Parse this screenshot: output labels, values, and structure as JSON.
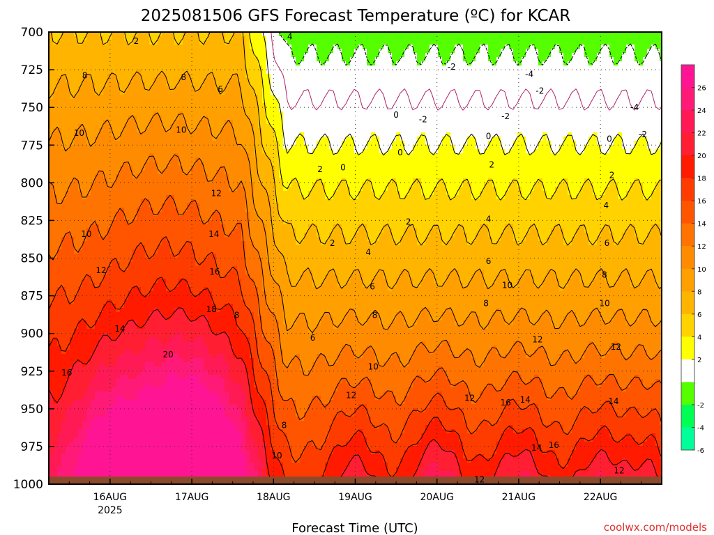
{
  "chart_data": {
    "type": "contour",
    "title": "2025081506 GFS Forecast Temperature (ºC) for KCAR",
    "xlabel": "Forecast Time (UTC)",
    "ylabel": "",
    "credit": "coolwx.com/models",
    "y_axis": {
      "direction": "inverted",
      "range": [
        700,
        1000
      ],
      "ticks": [
        "700",
        "725",
        "750",
        "775",
        "800",
        "825",
        "850",
        "875",
        "900",
        "925",
        "950",
        "975",
        "1000"
      ]
    },
    "x_axis": {
      "ticks": [
        {
          "label": "16AUG",
          "sub": "2025",
          "day": 1.0
        },
        {
          "label": "17AUG",
          "sub": "",
          "day": 2.0
        },
        {
          "label": "18AUG",
          "sub": "",
          "day": 3.0
        },
        {
          "label": "19AUG",
          "sub": "",
          "day": 4.0
        },
        {
          "label": "20AUG",
          "sub": "",
          "day": 5.0
        },
        {
          "label": "21AUG",
          "sub": "",
          "day": 6.0
        },
        {
          "label": "22AUG",
          "sub": "",
          "day": 7.0
        }
      ],
      "range_days": [
        0.25,
        7.75
      ]
    },
    "grid": "dotted",
    "colorbar": {
      "labels": [
        "26",
        "24",
        "22",
        "20",
        "18",
        "16",
        "14",
        "12",
        "10",
        "8",
        "6",
        "4",
        "2",
        "-2",
        "-4",
        "-6"
      ],
      "bands": [
        {
          "lo": 26,
          "hi": 28,
          "color": "#ff1493"
        },
        {
          "lo": 24,
          "hi": 26,
          "color": "#ff1a78"
        },
        {
          "lo": 22,
          "hi": 24,
          "color": "#ff1a55"
        },
        {
          "lo": 20,
          "hi": 22,
          "color": "#ff1e32"
        },
        {
          "lo": 18,
          "hi": 20,
          "color": "#ff1a00"
        },
        {
          "lo": 16,
          "hi": 18,
          "color": "#ff3c00"
        },
        {
          "lo": 14,
          "hi": 16,
          "color": "#ff5500"
        },
        {
          "lo": 12,
          "hi": 14,
          "color": "#ff7300"
        },
        {
          "lo": 10,
          "hi": 12,
          "color": "#ff8c00"
        },
        {
          "lo": 8,
          "hi": 10,
          "color": "#ffa000"
        },
        {
          "lo": 6,
          "hi": 8,
          "color": "#ffb400"
        },
        {
          "lo": 4,
          "hi": 6,
          "color": "#ffd200"
        },
        {
          "lo": 2,
          "hi": 4,
          "color": "#ffff00"
        },
        {
          "lo": -2,
          "hi": 2,
          "color": "#ffffff"
        },
        {
          "lo": -4,
          "hi": -2,
          "color": "#55ff00"
        },
        {
          "lo": -6,
          "hi": -4,
          "color": "#00ff55"
        },
        {
          "lo": -8,
          "hi": -6,
          "color": "#00ff99"
        }
      ]
    },
    "contour_levels": [
      -4,
      -2,
      0,
      2,
      4,
      6,
      8,
      10,
      12,
      14,
      16,
      18,
      20
    ],
    "contour_labels": [
      {
        "text": "2",
        "day": 1.32,
        "p": 706
      },
      {
        "text": "4",
        "day": 3.2,
        "p": 703
      },
      {
        "text": "8",
        "day": 0.69,
        "p": 729
      },
      {
        "text": "8",
        "day": 1.9,
        "p": 730
      },
      {
        "text": "6",
        "day": 2.35,
        "p": 738
      },
      {
        "text": "10",
        "day": 0.62,
        "p": 767
      },
      {
        "text": "10",
        "day": 1.87,
        "p": 765
      },
      {
        "text": "2",
        "day": 3.57,
        "p": 791
      },
      {
        "text": "12",
        "day": 2.3,
        "p": 807
      },
      {
        "text": "14",
        "day": 2.27,
        "p": 834
      },
      {
        "text": "16",
        "day": 2.28,
        "p": 859
      },
      {
        "text": "18",
        "day": 2.24,
        "p": 884
      },
      {
        "text": "20",
        "day": 1.71,
        "p": 914
      },
      {
        "text": "10",
        "day": 0.71,
        "p": 834
      },
      {
        "text": "12",
        "day": 0.89,
        "p": 858
      },
      {
        "text": "14",
        "day": 1.12,
        "p": 897
      },
      {
        "text": "16",
        "day": 0.47,
        "p": 926
      },
      {
        "text": "8",
        "day": 2.55,
        "p": 888
      },
      {
        "text": "8",
        "day": 3.13,
        "p": 961
      },
      {
        "text": "10",
        "day": 3.04,
        "p": 981
      },
      {
        "text": "6",
        "day": 3.48,
        "p": 903
      },
      {
        "text": "0",
        "day": 3.85,
        "p": 790
      },
      {
        "text": "2",
        "day": 3.72,
        "p": 840
      },
      {
        "text": "4",
        "day": 4.16,
        "p": 846
      },
      {
        "text": "6",
        "day": 4.21,
        "p": 869
      },
      {
        "text": "8",
        "day": 4.24,
        "p": 888
      },
      {
        "text": "10",
        "day": 4.22,
        "p": 922
      },
      {
        "text": "12",
        "day": 3.95,
        "p": 941
      },
      {
        "text": "0",
        "day": 4.5,
        "p": 755
      },
      {
        "text": "0",
        "day": 4.55,
        "p": 780
      },
      {
        "text": "-2",
        "day": 4.83,
        "p": 758
      },
      {
        "text": "-2",
        "day": 5.18,
        "p": 723
      },
      {
        "text": "2",
        "day": 4.65,
        "p": 826
      },
      {
        "text": "4",
        "day": 5.63,
        "p": 824
      },
      {
        "text": "6",
        "day": 5.63,
        "p": 852
      },
      {
        "text": "8",
        "day": 5.6,
        "p": 880
      },
      {
        "text": "10",
        "day": 5.86,
        "p": 868
      },
      {
        "text": "12",
        "day": 5.4,
        "p": 943
      },
      {
        "text": "0",
        "day": 5.63,
        "p": 769
      },
      {
        "text": "2",
        "day": 5.67,
        "p": 788
      },
      {
        "text": "-4",
        "day": 6.13,
        "p": 728
      },
      {
        "text": "-2",
        "day": 6.26,
        "p": 739
      },
      {
        "text": "-2",
        "day": 5.84,
        "p": 756
      },
      {
        "text": "16",
        "day": 5.84,
        "p": 946
      },
      {
        "text": "14",
        "day": 6.08,
        "p": 944
      },
      {
        "text": "12",
        "day": 6.23,
        "p": 904
      },
      {
        "text": "14",
        "day": 6.22,
        "p": 976
      },
      {
        "text": "16",
        "day": 6.43,
        "p": 974
      },
      {
        "text": "12",
        "day": 5.52,
        "p": 997
      },
      {
        "text": "0",
        "day": 7.11,
        "p": 771
      },
      {
        "text": "2",
        "day": 7.14,
        "p": 795
      },
      {
        "text": "4",
        "day": 7.07,
        "p": 815
      },
      {
        "text": "6",
        "day": 7.08,
        "p": 840
      },
      {
        "text": "8",
        "day": 7.05,
        "p": 861
      },
      {
        "text": "10",
        "day": 7.05,
        "p": 880
      },
      {
        "text": "12",
        "day": 7.19,
        "p": 909
      },
      {
        "text": "14",
        "day": 7.16,
        "p": 945
      },
      {
        "text": "12",
        "day": 7.23,
        "p": 991
      },
      {
        "text": "-4",
        "day": 7.42,
        "p": 750
      },
      {
        "text": "-2",
        "day": 7.52,
        "p": 768
      }
    ],
    "surface_pressure_approx": 995,
    "terrain_color": "#8b4a2b"
  }
}
